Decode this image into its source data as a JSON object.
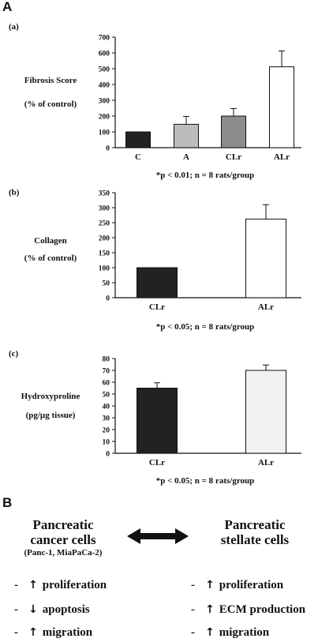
{
  "panelA": {
    "letter": "A"
  },
  "panelB": {
    "letter": "B"
  },
  "chart_data": [
    {
      "type": "bar",
      "panel": "(a)",
      "ylabel_line1": "Fibrosis Score",
      "ylabel_line2": "(% of control)",
      "categories": [
        "C",
        "A",
        "CLr",
        "ALr"
      ],
      "values": [
        100,
        148,
        200,
        512
      ],
      "errors": [
        0,
        50,
        48,
        100
      ],
      "colors": [
        "#222222",
        "#bcbcbc",
        "#8c8c8c",
        "#ffffff"
      ],
      "ylim": [
        0,
        700
      ],
      "yticks": [
        0,
        100,
        200,
        300,
        400,
        500,
        600,
        700
      ],
      "note": "*p < 0.01; n = 8 rats/group"
    },
    {
      "type": "bar",
      "panel": "(b)",
      "ylabel_line1": "Collagen",
      "ylabel_line2": "(% of control)",
      "categories": [
        "CLr",
        "ALr"
      ],
      "values": [
        100,
        262
      ],
      "errors": [
        0,
        48
      ],
      "colors": [
        "#222222",
        "#ffffff"
      ],
      "ylim": [
        0,
        350
      ],
      "yticks": [
        0,
        50,
        100,
        150,
        200,
        250,
        300,
        350
      ],
      "note": "*p < 0.05; n = 8 rats/group"
    },
    {
      "type": "bar",
      "panel": "(c)",
      "ylabel_line1": "Hydroxyproline",
      "ylabel_line2": "(pg/µg tissue)",
      "categories": [
        "CLr",
        "ALr"
      ],
      "values": [
        55,
        70
      ],
      "errors": [
        4.5,
        4.5
      ],
      "colors": [
        "#222222",
        "#f2f2f2"
      ],
      "ylim": [
        0,
        80
      ],
      "yticks": [
        0,
        10,
        20,
        30,
        40,
        50,
        60,
        70,
        80
      ],
      "note": "*p < 0.05; n = 8 rats/group"
    }
  ],
  "diagram": {
    "left_title_1": "Pancreatic",
    "left_title_2": "cancer cells",
    "left_sub": "(Panc-1, MiaPaCa-2)",
    "right_title_1": "Pancreatic",
    "right_title_2": "stellate cells",
    "left_effects": [
      {
        "dash": "-",
        "arrow": "↑",
        "text": "proliferation"
      },
      {
        "dash": "-",
        "arrow": "↓",
        "text": "apoptosis"
      },
      {
        "dash": "-",
        "arrow": "↑",
        "text": "migration"
      }
    ],
    "right_effects": [
      {
        "dash": "-",
        "arrow": "↑",
        "text": "proliferation"
      },
      {
        "dash": "-",
        "arrow": "↑",
        "text": "ECM production"
      },
      {
        "dash": "-",
        "arrow": "↑",
        "text": "migration"
      }
    ]
  }
}
